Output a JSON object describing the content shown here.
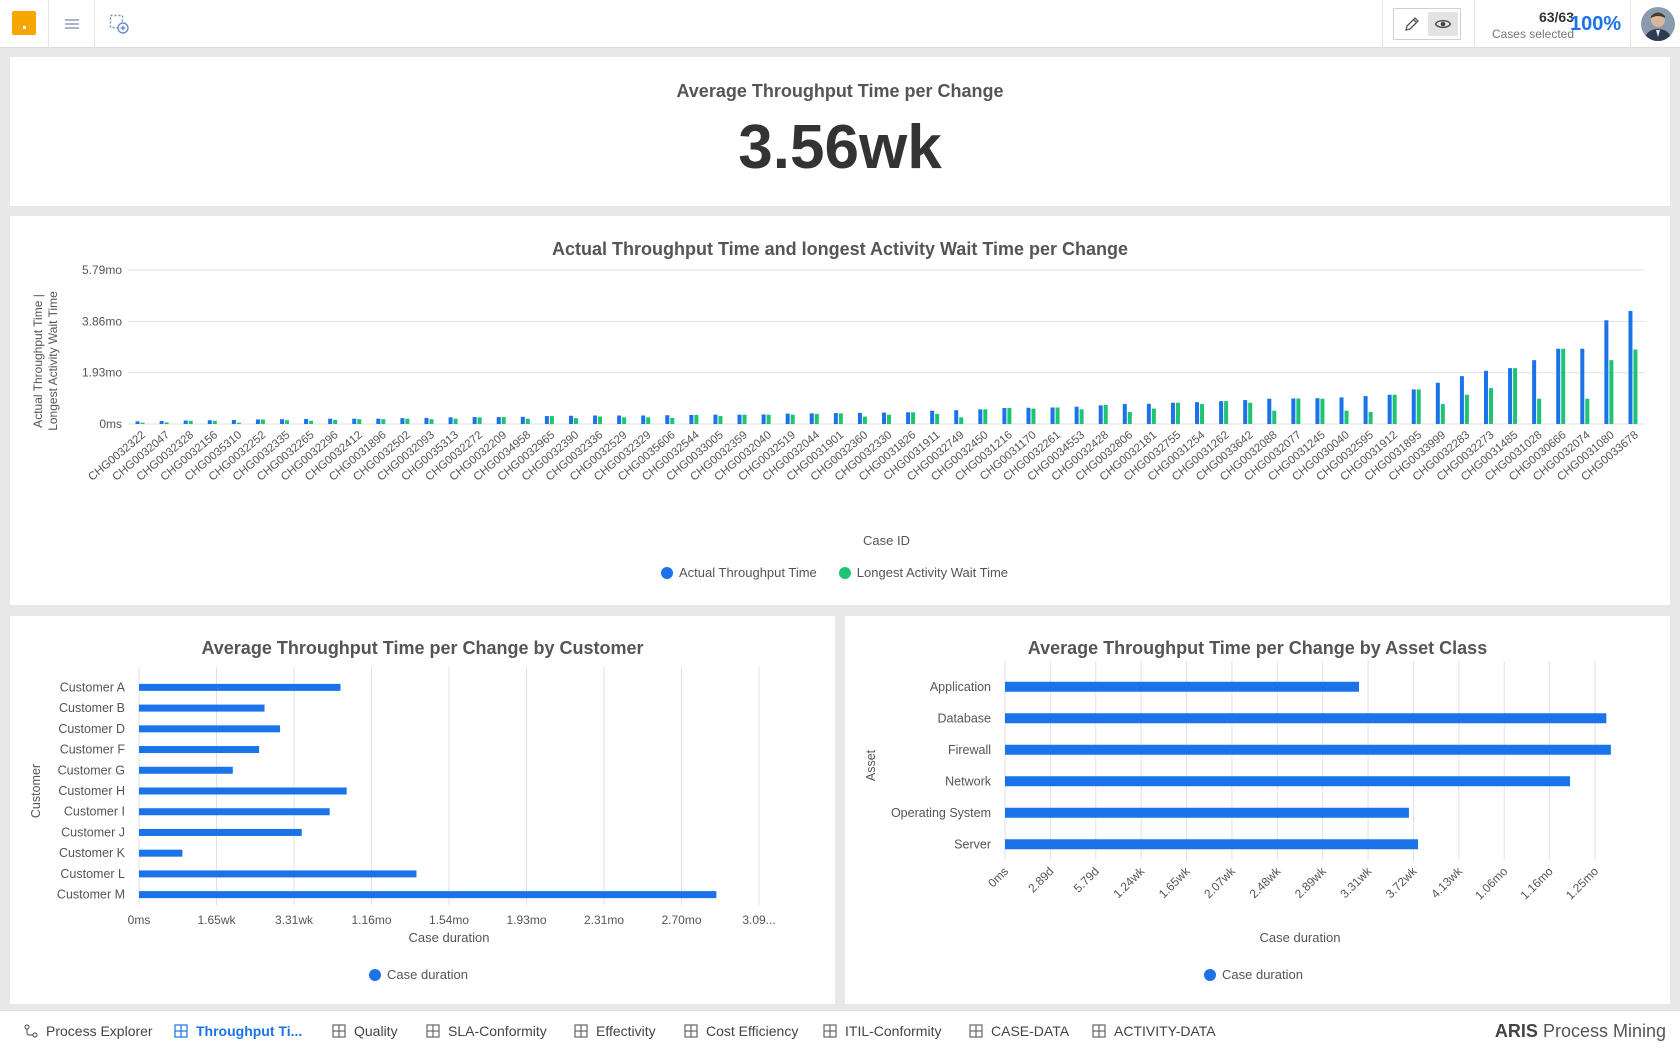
{
  "header": {
    "cases_count": "63/63",
    "cases_label": "Cases selected",
    "percent": "100%"
  },
  "kpi": {
    "title": "Average Throughput Time per Change",
    "value": "3.56wk"
  },
  "colors": {
    "blue": "#1a73e8",
    "green": "#1fc473",
    "accent": "#f7a600"
  },
  "chart_data": [
    {
      "type": "bar",
      "title": "Actual Throughput Time and longest Activity Wait Time per Change",
      "xlabel": "Case ID",
      "ylabel": "Actual Throughput Time | Longest Activity Wait Time",
      "yticks": [
        "0ms",
        "1.93mo",
        "3.86mo",
        "5.79mo"
      ],
      "ylim": [
        0,
        5.79
      ],
      "yunit": "mo",
      "grid": true,
      "legend": "bottom",
      "categories": [
        "CHG0032322",
        "CHG0032047",
        "CHG0032328",
        "CHG0032156",
        "CHG0035310",
        "CHG0032252",
        "CHG0032335",
        "CHG0032265",
        "CHG0032296",
        "CHG0032412",
        "CHG0031896",
        "CHG0032502",
        "CHG0032093",
        "CHG0035313",
        "CHG0032272",
        "CHG0032209",
        "CHG0034958",
        "CHG0032965",
        "CHG0032390",
        "CHG0032336",
        "CHG0032529",
        "CHG0032329",
        "CHG0035606",
        "CHG0032544",
        "CHG0033005",
        "CHG0032359",
        "CHG0032040",
        "CHG0032519",
        "CHG0032044",
        "CHG0031901",
        "CHG0032360",
        "CHG0032330",
        "CHG0031826",
        "CHG0031911",
        "CHG0032749",
        "CHG0032450",
        "CHG0031216",
        "CHG0031170",
        "CHG0032261",
        "CHG0034553",
        "CHG0032428",
        "CHG0032806",
        "CHG0032181",
        "CHG0032755",
        "CHG0031254",
        "CHG0031262",
        "CHG0033642",
        "CHG0032088",
        "CHG0032077",
        "CHG0031245",
        "CHG0030040",
        "CHG0032595",
        "CHG0031912",
        "CHG0031895",
        "CHG0033999",
        "CHG0032283",
        "CHG0032273",
        "CHG0031485",
        "CHG0031028",
        "CHG0030666",
        "CHG0032074",
        "CHG0031080",
        "CHG0033678"
      ],
      "series": [
        {
          "name": "Actual Throughput Time",
          "color": "#1a73e8",
          "values": [
            0.1,
            0.11,
            0.13,
            0.14,
            0.15,
            0.17,
            0.18,
            0.19,
            0.2,
            0.2,
            0.2,
            0.22,
            0.23,
            0.25,
            0.26,
            0.26,
            0.27,
            0.3,
            0.31,
            0.32,
            0.32,
            0.32,
            0.33,
            0.34,
            0.35,
            0.35,
            0.36,
            0.39,
            0.4,
            0.41,
            0.42,
            0.43,
            0.44,
            0.5,
            0.52,
            0.55,
            0.6,
            0.61,
            0.62,
            0.65,
            0.7,
            0.75,
            0.76,
            0.8,
            0.82,
            0.86,
            0.9,
            0.95,
            0.96,
            0.97,
            1.0,
            1.05,
            1.1,
            1.3,
            1.55,
            1.8,
            2.0,
            2.1,
            2.4,
            2.83,
            2.83,
            3.9,
            4.25
          ]
        },
        {
          "name": "Longest Activity Wait Time",
          "color": "#1fc473",
          "values": [
            0.05,
            0.06,
            0.12,
            0.12,
            0.05,
            0.17,
            0.14,
            0.12,
            0.15,
            0.18,
            0.18,
            0.2,
            0.18,
            0.2,
            0.25,
            0.26,
            0.2,
            0.3,
            0.22,
            0.28,
            0.25,
            0.25,
            0.23,
            0.34,
            0.3,
            0.35,
            0.35,
            0.35,
            0.38,
            0.4,
            0.28,
            0.35,
            0.44,
            0.38,
            0.25,
            0.55,
            0.6,
            0.58,
            0.62,
            0.55,
            0.72,
            0.45,
            0.58,
            0.8,
            0.75,
            0.86,
            0.8,
            0.5,
            0.96,
            0.95,
            0.5,
            0.45,
            1.1,
            1.3,
            0.75,
            1.1,
            1.35,
            2.1,
            0.95,
            2.83,
            0.95,
            2.4,
            2.8
          ]
        }
      ]
    },
    {
      "type": "bar",
      "orientation": "horizontal",
      "title": "Average Throughput Time per Change by Customer",
      "xlabel": "Case duration",
      "ylabel": "Customer",
      "xticks": [
        "0ms",
        "1.65wk",
        "3.31wk",
        "1.16mo",
        "1.54mo",
        "1.93mo",
        "2.31mo",
        "2.70mo",
        "3.09..."
      ],
      "xlim": [
        0,
        8
      ],
      "xunit": "tick intervals",
      "grid": true,
      "legend": "bottom",
      "categories": [
        "Customer A",
        "Customer B",
        "Customer D",
        "Customer F",
        "Customer G",
        "Customer H",
        "Customer I",
        "Customer J",
        "Customer K",
        "Customer L",
        "Customer M"
      ],
      "series": [
        {
          "name": "Case duration",
          "color": "#1a73e8",
          "values": [
            2.6,
            1.62,
            1.82,
            1.55,
            1.21,
            2.68,
            2.46,
            2.1,
            0.56,
            3.58,
            7.45
          ]
        }
      ]
    },
    {
      "type": "bar",
      "orientation": "horizontal",
      "title": "Average Throughput Time per Change by Asset Class",
      "xlabel": "Case duration",
      "ylabel": "Asset",
      "xticks": [
        "0ms",
        "2.89d",
        "5.79d",
        "1.24wk",
        "1.65wk",
        "2.07wk",
        "2.48wk",
        "2.89wk",
        "3.31wk",
        "3.72wk",
        "4.13wk",
        "1.06mo",
        "1.16mo",
        "1.25mo"
      ],
      "xlim": [
        0,
        13
      ],
      "xunit": "tick intervals",
      "grid": true,
      "legend": "bottom",
      "categories": [
        "Application",
        "Database",
        "Firewall",
        "Network",
        "Operating System",
        "Server"
      ],
      "series": [
        {
          "name": "Case duration",
          "color": "#1a73e8",
          "values": [
            7.8,
            13.25,
            13.35,
            12.45,
            8.9,
            9.1
          ]
        }
      ]
    }
  ],
  "tabs": [
    {
      "label": "Process Explorer",
      "icon": "process-explorer-icon",
      "active": false
    },
    {
      "label": "Throughput Ti...",
      "icon": "dashboard-icon",
      "active": true
    },
    {
      "label": "Quality",
      "icon": "dashboard-icon",
      "active": false
    },
    {
      "label": "SLA-Conformity",
      "icon": "dashboard-icon",
      "active": false
    },
    {
      "label": "Effectivity",
      "icon": "dashboard-icon",
      "active": false
    },
    {
      "label": "Cost Efficiency",
      "icon": "dashboard-icon",
      "active": false
    },
    {
      "label": "ITIL-Conformity",
      "icon": "dashboard-icon",
      "active": false
    },
    {
      "label": "CASE-DATA",
      "icon": "dashboard-icon",
      "active": false
    },
    {
      "label": "ACTIVITY-DATA",
      "icon": "dashboard-icon",
      "active": false
    }
  ],
  "brand": {
    "strong": "ARIS",
    "rest": "Process Mining"
  }
}
